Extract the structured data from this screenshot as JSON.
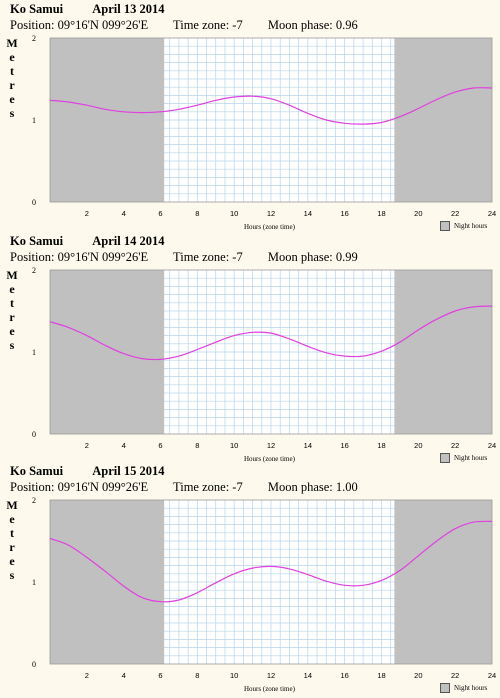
{
  "panels": [
    {
      "location": "Ko Samui",
      "date": "April 13 2014",
      "position": "Position: 09°16'N 099°26'E",
      "timezone": "Time zone: -7",
      "moon": "Moon phase: 0.96"
    },
    {
      "location": "Ko Samui",
      "date": "April 14 2014",
      "position": "Position: 09°16'N 099°26'E",
      "timezone": "Time zone: -7",
      "moon": "Moon phase: 0.99"
    },
    {
      "location": "Ko Samui",
      "date": "April 15 2014",
      "position": "Position: 09°16'N 099°26'E",
      "timezone": "Time zone: -7",
      "moon": "Moon phase: 1.00"
    }
  ],
  "ylabel_letters": [
    "M",
    "e",
    "t",
    "r",
    "e",
    "s"
  ],
  "xlabel": "Hours (zone time)",
  "legend": "Night hours",
  "colors": {
    "night": "#c0c0c0",
    "day": "#ffffff",
    "grid": "#b8d4ea",
    "curve": "#e040e0",
    "background": "#fdf9ec"
  },
  "chart_data": [
    {
      "type": "line",
      "xlabel": "Hours (zone time)",
      "ylabel": "Metres",
      "xlim": [
        0,
        24
      ],
      "ylim": [
        0,
        2
      ],
      "x_ticks": [
        2,
        4,
        6,
        8,
        10,
        12,
        14,
        16,
        18,
        20,
        22,
        24
      ],
      "y_ticks": [
        0,
        1,
        2
      ],
      "night_hours": [
        [
          0,
          6.2
        ],
        [
          18.7,
          24
        ]
      ],
      "x": [
        0,
        1,
        2,
        3,
        4,
        5,
        6,
        7,
        8,
        9,
        10,
        11,
        12,
        13,
        14,
        15,
        16,
        17,
        18,
        19,
        20,
        21,
        22,
        23,
        24
      ],
      "values": [
        1.24,
        1.22,
        1.18,
        1.13,
        1.1,
        1.09,
        1.1,
        1.13,
        1.18,
        1.24,
        1.28,
        1.29,
        1.26,
        1.18,
        1.08,
        1.0,
        0.96,
        0.95,
        0.97,
        1.04,
        1.14,
        1.25,
        1.34,
        1.39,
        1.39
      ]
    },
    {
      "type": "line",
      "xlabel": "Hours (zone time)",
      "ylabel": "Metres",
      "xlim": [
        0,
        24
      ],
      "ylim": [
        0,
        2
      ],
      "x_ticks": [
        2,
        4,
        6,
        8,
        10,
        12,
        14,
        16,
        18,
        20,
        22,
        24
      ],
      "y_ticks": [
        0,
        1,
        2
      ],
      "night_hours": [
        [
          0,
          6.2
        ],
        [
          18.7,
          24
        ]
      ],
      "x": [
        0,
        1,
        2,
        3,
        4,
        5,
        6,
        7,
        8,
        9,
        10,
        11,
        12,
        13,
        14,
        15,
        16,
        17,
        18,
        19,
        20,
        21,
        22,
        23,
        24
      ],
      "values": [
        1.37,
        1.3,
        1.2,
        1.08,
        0.98,
        0.92,
        0.91,
        0.95,
        1.03,
        1.12,
        1.2,
        1.24,
        1.23,
        1.16,
        1.07,
        0.99,
        0.95,
        0.95,
        1.01,
        1.12,
        1.27,
        1.4,
        1.5,
        1.55,
        1.56
      ]
    },
    {
      "type": "line",
      "xlabel": "Hours (zone time)",
      "ylabel": "Metres",
      "xlim": [
        0,
        24
      ],
      "ylim": [
        0,
        2
      ],
      "x_ticks": [
        2,
        4,
        6,
        8,
        10,
        12,
        14,
        16,
        18,
        20,
        22,
        24
      ],
      "y_ticks": [
        0,
        1,
        2
      ],
      "night_hours": [
        [
          0,
          6.2
        ],
        [
          18.7,
          24
        ]
      ],
      "x": [
        0,
        1,
        2,
        3,
        4,
        5,
        6,
        7,
        8,
        9,
        10,
        11,
        12,
        13,
        14,
        15,
        16,
        17,
        18,
        19,
        20,
        21,
        22,
        23,
        24
      ],
      "values": [
        1.53,
        1.45,
        1.3,
        1.13,
        0.95,
        0.81,
        0.76,
        0.78,
        0.87,
        0.99,
        1.1,
        1.17,
        1.19,
        1.16,
        1.09,
        1.01,
        0.96,
        0.96,
        1.02,
        1.14,
        1.32,
        1.5,
        1.65,
        1.73,
        1.74
      ]
    }
  ]
}
